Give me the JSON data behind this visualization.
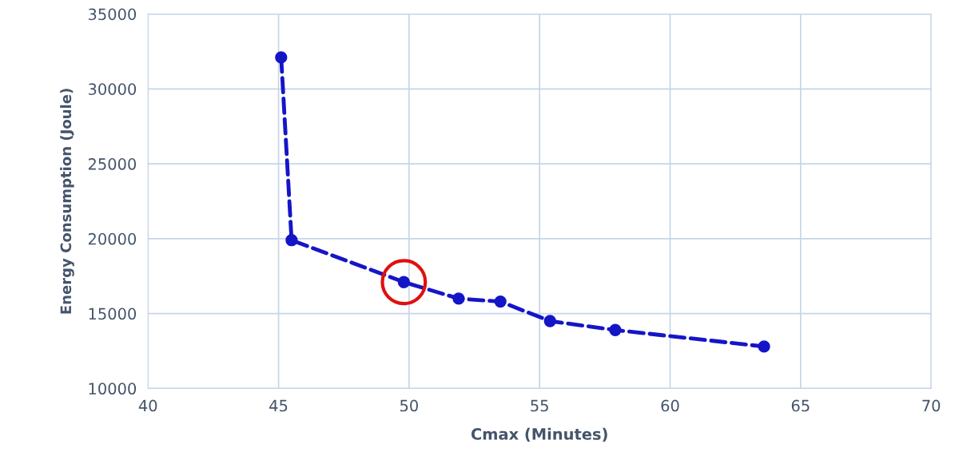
{
  "chart_data": {
    "type": "line",
    "xlabel": "Cmax (Minutes)",
    "ylabel": "Energy Consumption (Joule)",
    "series": [
      {
        "color": "#1515c8",
        "x": [
          45.1,
          45.5,
          49.8,
          51.9,
          53.5,
          55.4,
          57.9,
          63.6
        ],
        "values": [
          32100,
          19900,
          17100,
          16000,
          15800,
          14500,
          13900,
          12800
        ],
        "marker": "circle",
        "line_style": "dashed"
      },
      {
        "type": "scatter",
        "color": "#e01010",
        "x": [
          49.8
        ],
        "values": [
          17100
        ],
        "marker": "circle"
      }
    ],
    "xlim": [
      40,
      70
    ],
    "xticks": [
      40,
      45,
      50,
      55,
      60,
      65,
      70
    ],
    "ylim": [
      10000,
      35000
    ],
    "yticks": [
      10000,
      15000,
      20000,
      25000,
      30000,
      35000
    ],
    "grid": true
  }
}
